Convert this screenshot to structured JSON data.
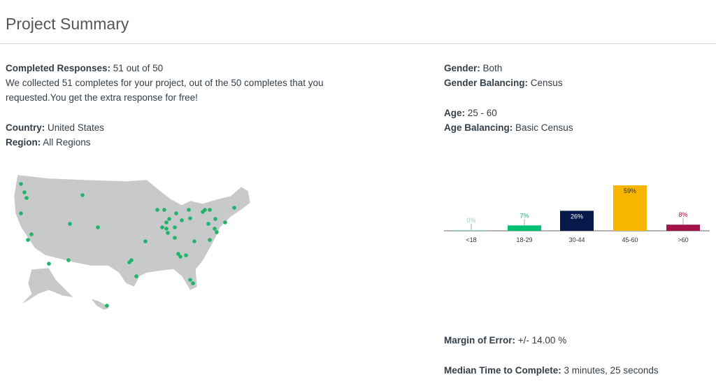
{
  "page_title": "Project Summary",
  "left": {
    "completed_label": "Completed Responses:",
    "completed_value": "51 out of 50",
    "completed_note": "We collected 51 completes for your project, out of the 50 completes that you requested.You get the extra response for free!",
    "country_label": "Country:",
    "country_value": "United States",
    "region_label": "Region:",
    "region_value": "All Regions"
  },
  "right": {
    "gender_label": "Gender:",
    "gender_value": "Both",
    "gender_bal_label": "Gender Balancing:",
    "gender_bal_value": "Census",
    "age_label": "Age:",
    "age_value": "25 - 60",
    "age_bal_label": "Age Balancing:",
    "age_bal_value": "Basic Census",
    "moe_label": "Margin of Error:",
    "moe_value": "+/- 14.00 %",
    "median_label": "Median Time to Complete:",
    "median_value": "3 minutes, 25 seconds"
  },
  "map": {
    "fill": "#c8c9ca",
    "dot_color": "#1fb46a"
  },
  "chart_data": {
    "type": "bar",
    "categories": [
      "<18",
      "18-29",
      "30-44",
      "45-60",
      ">60"
    ],
    "values": [
      0,
      7,
      26,
      59,
      8
    ],
    "data_labels": [
      "0%",
      "7%",
      "26%",
      "59%",
      "8%"
    ],
    "colors": [
      "#8fd3c8",
      "#00bf6f",
      "#051a4a",
      "#f7b500",
      "#a2124b"
    ],
    "ylim": [
      0,
      60
    ]
  }
}
